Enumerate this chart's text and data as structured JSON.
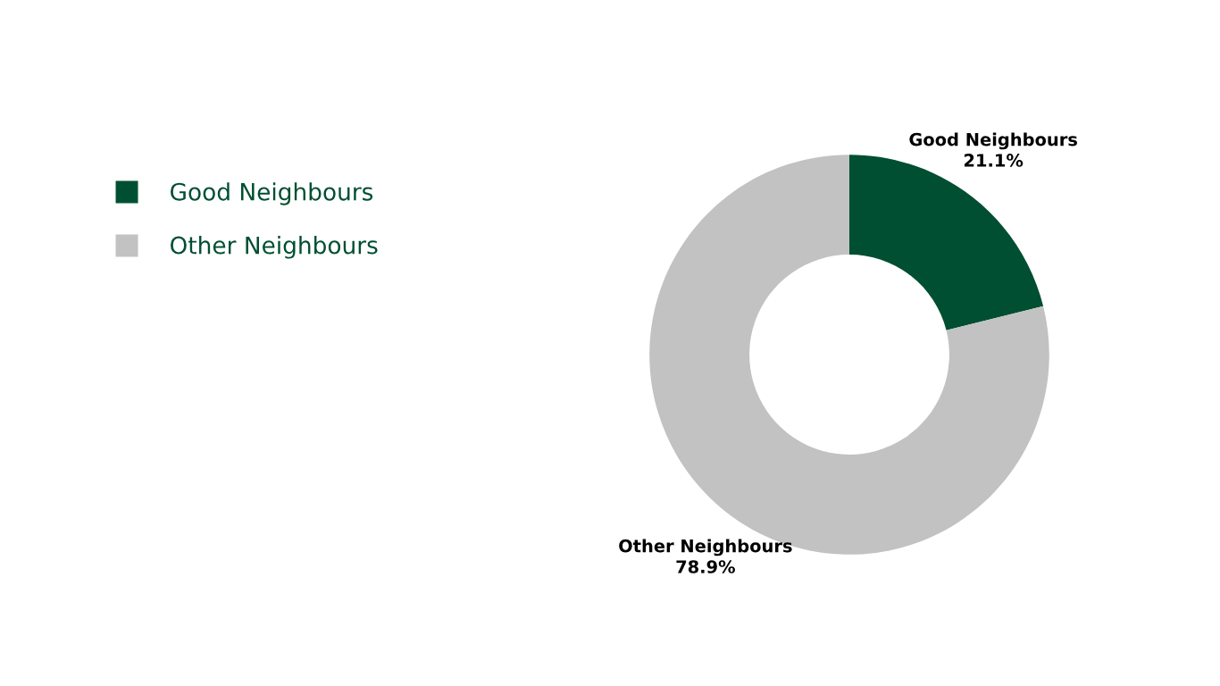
{
  "chart_data": {
    "type": "donut",
    "categories": [
      "Good Neighbours",
      "Other Neighbours"
    ],
    "values": [
      21.1,
      78.9
    ],
    "colors": [
      "#004f32",
      "#c2c2c2"
    ],
    "value_labels": [
      "21.1%",
      "78.9%"
    ],
    "legend": "left"
  }
}
